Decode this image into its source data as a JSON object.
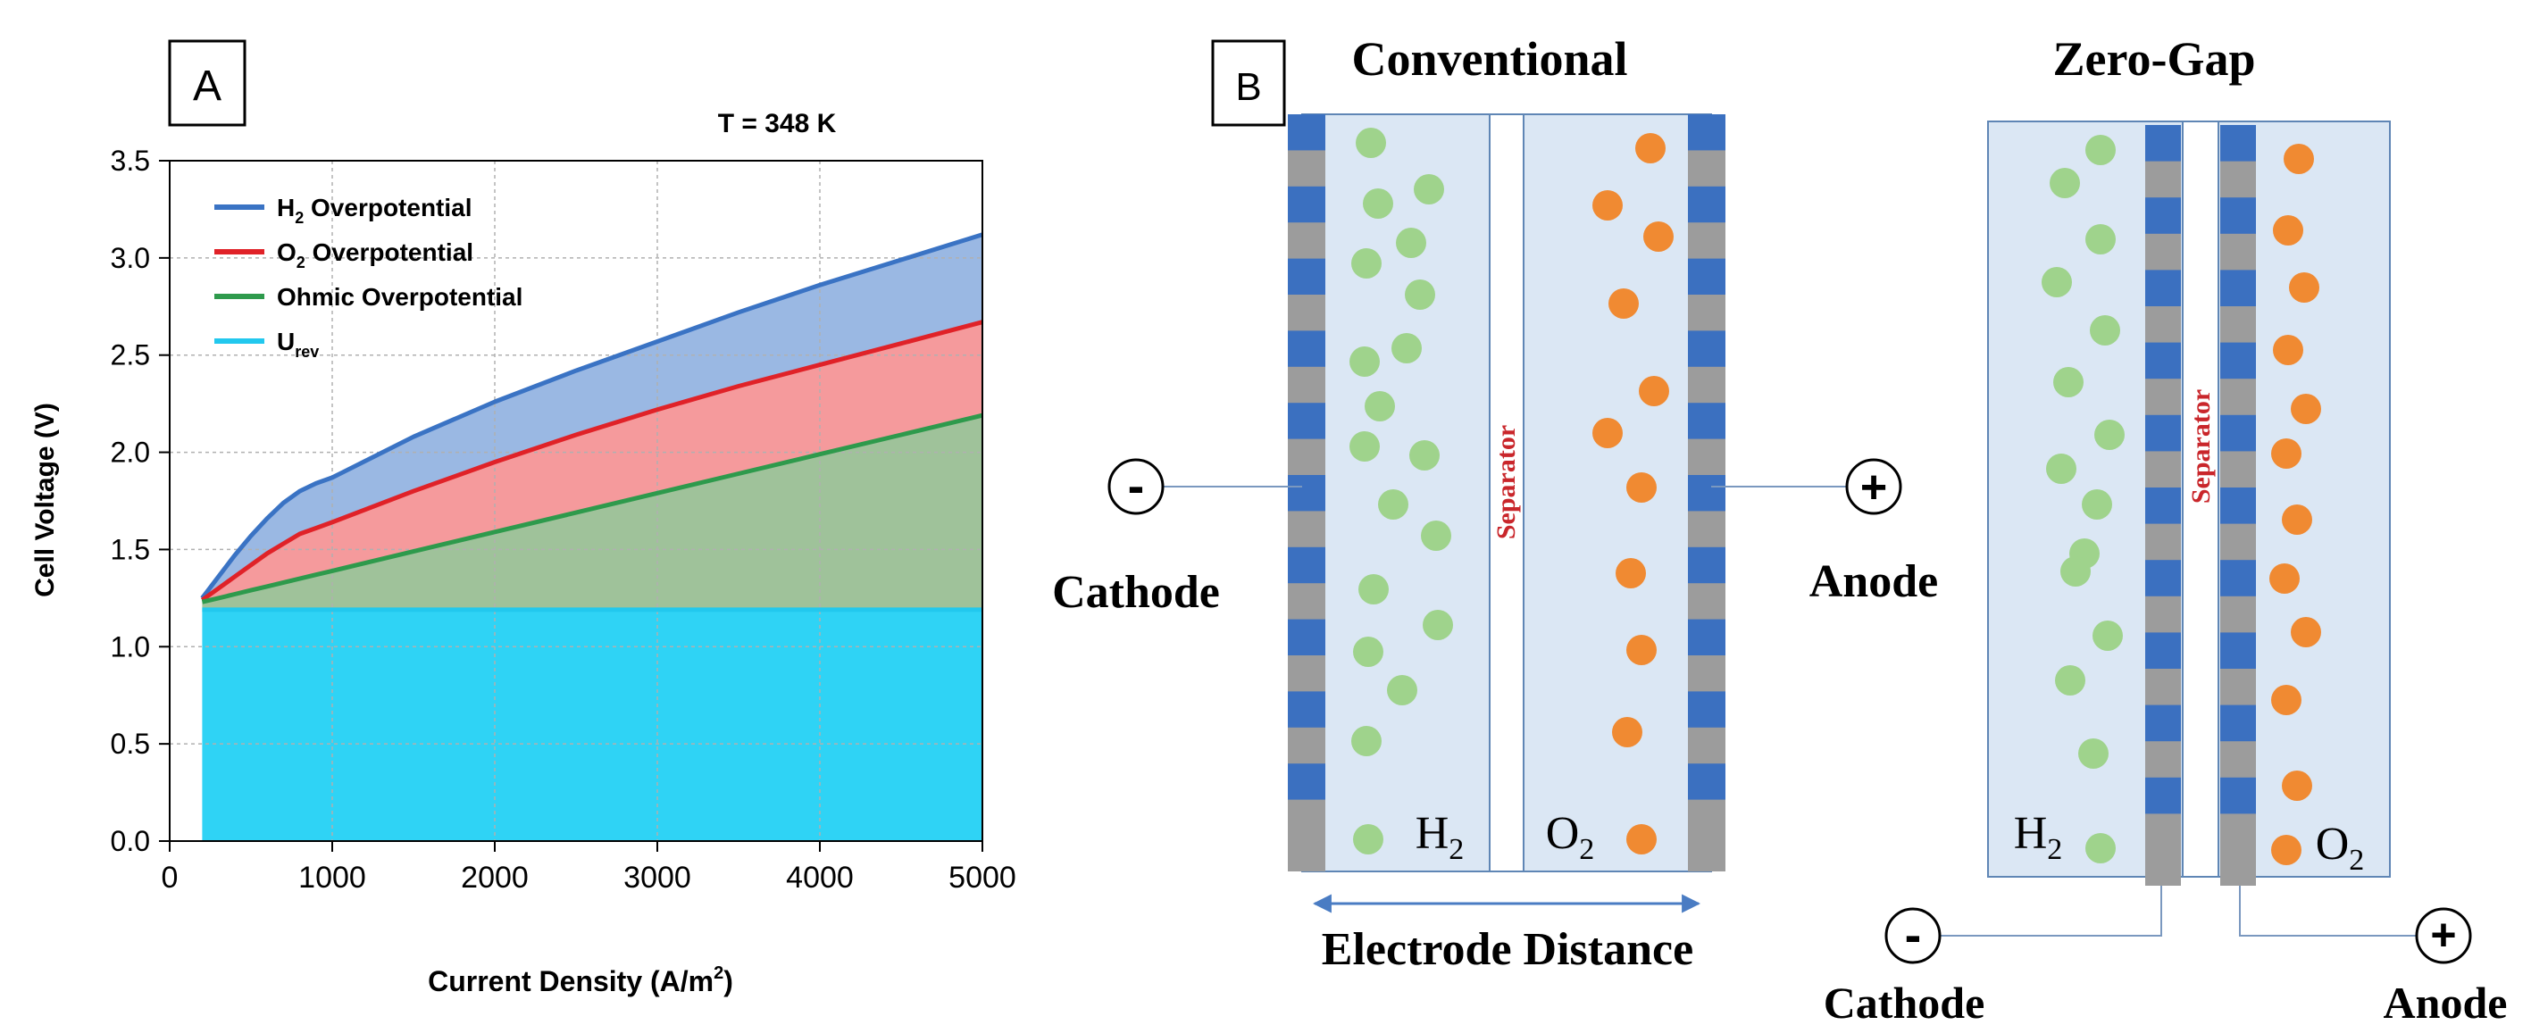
{
  "panel_a": {
    "label": "A",
    "chart_data": {
      "type": "area",
      "title": "T = 348 K",
      "xlabel": "Current Density (A/m²)",
      "xlabel_parts": [
        "Current Density (A/m",
        "2",
        ")"
      ],
      "ylabel": "Cell Voltage (V)",
      "xlim": [
        0,
        5000
      ],
      "ylim": [
        0,
        3.5
      ],
      "x_ticks": [
        0,
        1000,
        2000,
        3000,
        4000,
        5000
      ],
      "y_ticks": [
        "0.0",
        "0.5",
        "1.0",
        "1.5",
        "2.0",
        "2.5",
        "3.0",
        "3.5"
      ],
      "grid": true,
      "legend_position": "top-left",
      "x": [
        200,
        300,
        400,
        500,
        600,
        700,
        800,
        900,
        1000,
        1500,
        2000,
        2500,
        3000,
        3500,
        4000,
        4500,
        5000
      ],
      "series": [
        {
          "name": "H2 Overpotential",
          "legend_main": "H",
          "legend_sub": "2",
          "legend_rest": " Overpotential",
          "color": "#3a73c4",
          "fill": "#9ab8e3",
          "values": [
            1.25,
            1.36,
            1.47,
            1.57,
            1.66,
            1.74,
            1.8,
            1.84,
            1.87,
            2.08,
            2.26,
            2.42,
            2.57,
            2.72,
            2.86,
            2.99,
            3.12
          ]
        },
        {
          "name": "O2 Overpotential",
          "legend_main": "O",
          "legend_sub": "2",
          "legend_rest": " Overpotential",
          "color": "#e02228",
          "fill": "#f59a9c",
          "values": [
            1.24,
            1.3,
            1.36,
            1.42,
            1.48,
            1.53,
            1.58,
            1.61,
            1.64,
            1.8,
            1.95,
            2.09,
            2.22,
            2.34,
            2.45,
            2.56,
            2.67
          ]
        },
        {
          "name": "Ohmic Overpotential",
          "legend_main": "Ohmic Overpotential",
          "legend_sub": "",
          "legend_rest": "",
          "color": "#2e9a4c",
          "fill": "#9fc29a",
          "values": [
            1.23,
            1.25,
            1.27,
            1.29,
            1.31,
            1.33,
            1.35,
            1.37,
            1.39,
            1.49,
            1.59,
            1.69,
            1.79,
            1.89,
            1.99,
            2.09,
            2.19
          ]
        },
        {
          "name": "Urev",
          "legend_main": "U",
          "legend_sub": "rev",
          "legend_rest": "",
          "color": "#22c8ee",
          "fill": "#2fd3f5",
          "values": [
            1.19,
            1.19,
            1.19,
            1.19,
            1.19,
            1.19,
            1.19,
            1.19,
            1.19,
            1.19,
            1.19,
            1.19,
            1.19,
            1.19,
            1.19,
            1.19,
            1.19
          ]
        }
      ]
    }
  },
  "panel_b": {
    "label": "B",
    "conventional": {
      "title": "Conventional",
      "separator_label": "Separator",
      "h2_main": "H",
      "h2_sub": "2",
      "o2_main": "O",
      "o2_sub": "2",
      "cathode_sign": "-",
      "cathode_label": "Cathode",
      "anode_sign": "+",
      "anode_label": "Anode",
      "distance_label": "Electrode Distance"
    },
    "zero_gap": {
      "title": "Zero-Gap",
      "separator_label": "Separator",
      "h2_main": "H",
      "h2_sub": "2",
      "o2_main": "O",
      "o2_sub": "2",
      "cathode_sign": "-",
      "cathode_label": "Cathode",
      "anode_sign": "+",
      "anode_label": "Anode"
    },
    "colors": {
      "hydrogen": "#9fd38c",
      "oxygen": "#f08a32",
      "electrolyte": "#dbe7f4",
      "electrode_blue": "#3b70c0",
      "electrode_gray": "#9c9c9c"
    }
  }
}
